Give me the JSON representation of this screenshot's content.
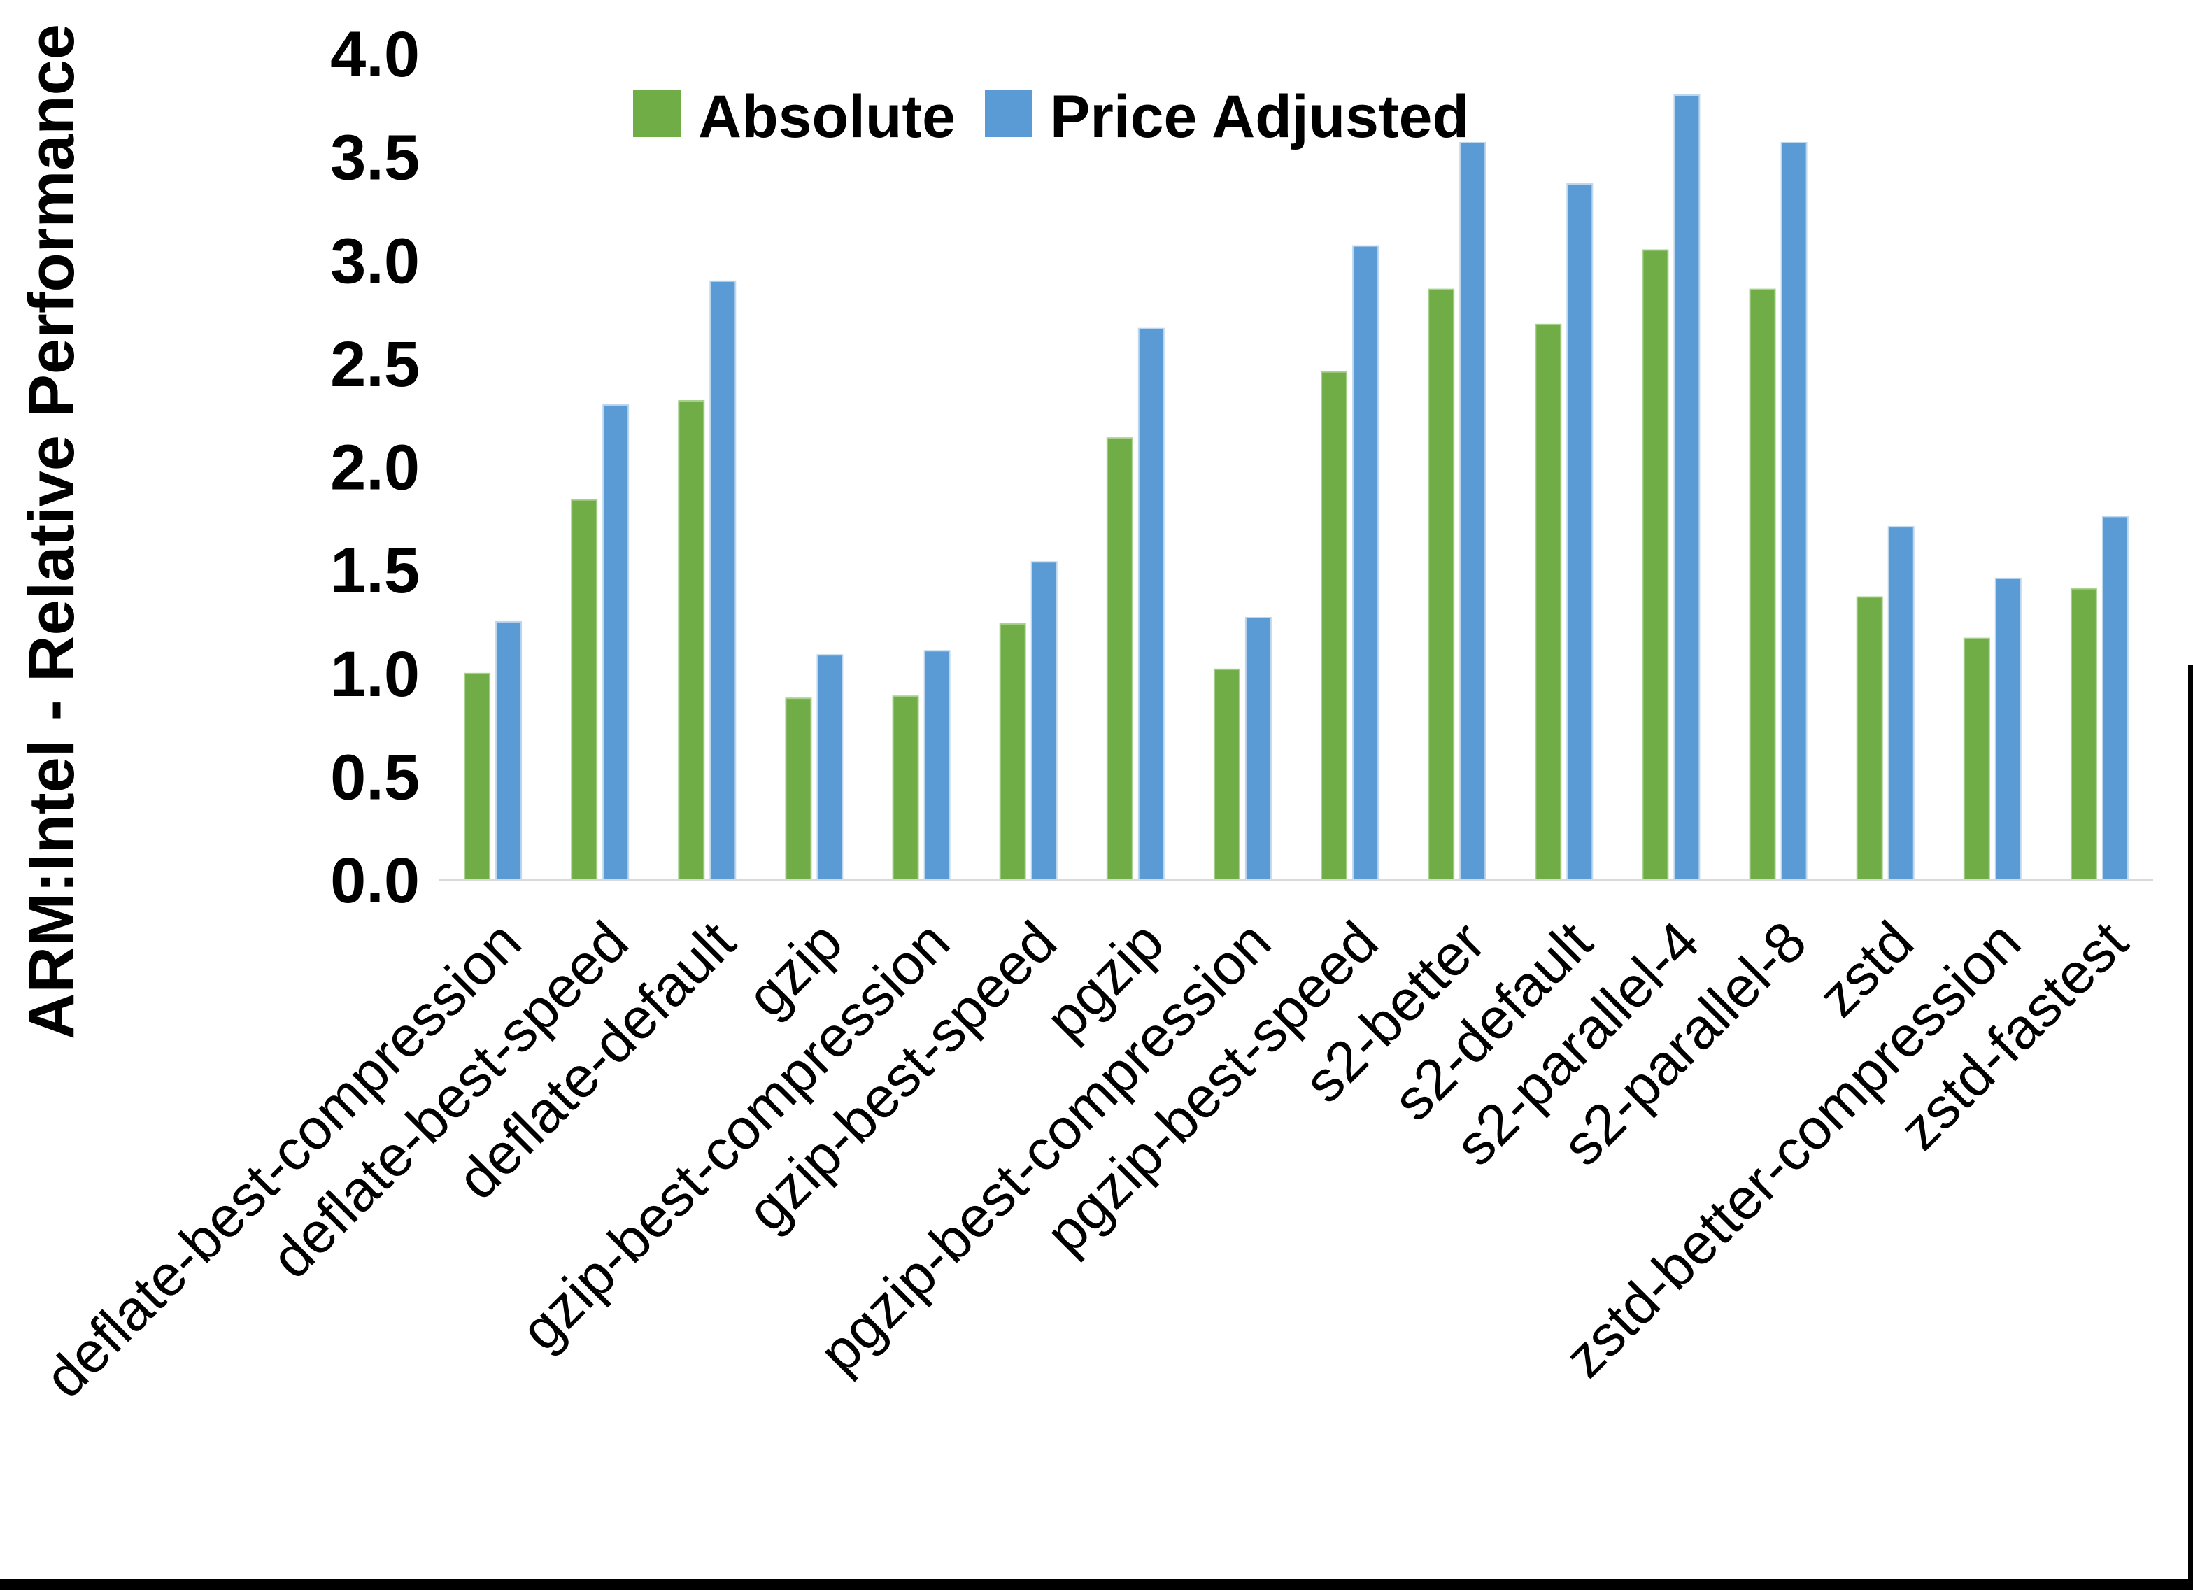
{
  "chart_data": {
    "type": "bar",
    "title": "",
    "ylabel": "ARM:Intel - Relative Performance",
    "xlabel": "",
    "ylim": [
      0,
      4
    ],
    "ytick_step": 0.5,
    "ytick_format_decimals": 1,
    "grid": false,
    "legend_position": "top-center",
    "categories": [
      "deflate-best-compression",
      "deflate-best-speed",
      "deflate-default",
      "gzip",
      "gzip-best-compression",
      "gzip-best-speed",
      "pgzip",
      "pgzip-best-compression",
      "pgzip-best-speed",
      "s2-better",
      "s2-default",
      "s2-parallel-4",
      "s2-parallel-8",
      "zstd",
      "zstd-better-compression",
      "zstd-fastest"
    ],
    "series": [
      {
        "name": "Absolute",
        "color": "#70AD47",
        "values": [
          1.0,
          1.84,
          2.32,
          0.88,
          0.89,
          1.24,
          2.14,
          1.02,
          2.46,
          2.86,
          2.69,
          3.05,
          2.86,
          1.37,
          1.17,
          1.41
        ]
      },
      {
        "name": "Price Adjusted",
        "color": "#5B9BD5",
        "values": [
          1.25,
          2.3,
          2.9,
          1.09,
          1.11,
          1.54,
          2.67,
          1.27,
          3.07,
          3.57,
          3.37,
          3.8,
          3.57,
          1.71,
          1.46,
          1.76
        ]
      }
    ]
  }
}
